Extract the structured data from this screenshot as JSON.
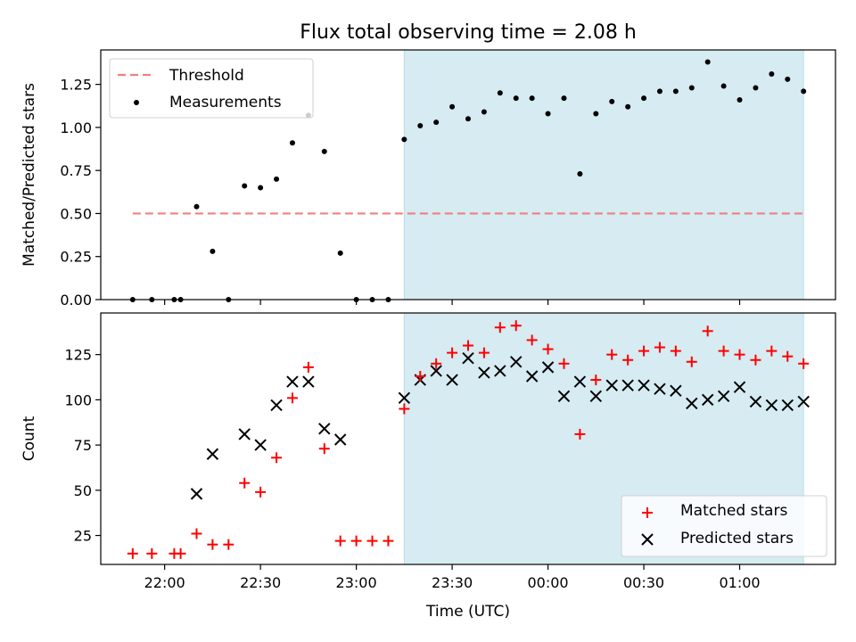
{
  "title": "Flux total observing time = 2.08 h",
  "xlabel": "Time (UTC)",
  "x_tick_labels": [
    "22:00",
    "22:30",
    "23:00",
    "23:30",
    "00:00",
    "00:30",
    "01:00"
  ],
  "colors": {
    "threshold": "#f08080",
    "measurement": "#000000",
    "matched": "#ff0000",
    "predicted": "#000000",
    "shade": "#add8e6"
  },
  "chart_data": [
    {
      "type": "scatter",
      "ylabel": "Matched/Predicted stars",
      "ylim": [
        0,
        1.45
      ],
      "y_ticks": [
        "0.00",
        "0.25",
        "0.50",
        "0.75",
        "1.00",
        "1.25"
      ],
      "y_tick_values": [
        0,
        0.25,
        0.5,
        0.75,
        1.0,
        1.25
      ],
      "xlim": [
        "21:40",
        "01:30"
      ],
      "shaded_region": {
        "x_start": "23:15",
        "x_end": "01:20"
      },
      "legend_position": "top-left",
      "threshold": {
        "name": "Threshold",
        "value": 0.5,
        "x_start": "21:50",
        "x_end": "01:20"
      },
      "series": [
        {
          "name": "Measurements",
          "x": [
            "21:50",
            "21:56",
            "22:03",
            "22:05",
            "22:10",
            "22:15",
            "22:20",
            "22:25",
            "22:30",
            "22:35",
            "22:40",
            "22:45",
            "22:50",
            "22:55",
            "23:00",
            "23:05",
            "23:10",
            "23:15",
            "23:20",
            "23:25",
            "23:30",
            "23:35",
            "23:40",
            "23:45",
            "23:50",
            "23:55",
            "24:00",
            "24:05",
            "24:10",
            "24:15",
            "24:20",
            "24:25",
            "24:30",
            "24:35",
            "24:40",
            "24:45",
            "24:50",
            "24:55",
            "25:00",
            "25:05",
            "25:10",
            "25:15",
            "25:20"
          ],
          "y": [
            0.0,
            0.0,
            0.0,
            0.0,
            0.54,
            0.28,
            0.0,
            0.66,
            0.65,
            0.7,
            0.91,
            1.07,
            0.86,
            0.27,
            0.0,
            0.0,
            0.0,
            0.93,
            1.01,
            1.03,
            1.12,
            1.05,
            1.09,
            1.2,
            1.17,
            1.17,
            1.08,
            1.17,
            0.73,
            1.08,
            1.15,
            1.12,
            1.17,
            1.21,
            1.21,
            1.23,
            1.38,
            1.24,
            1.16,
            1.23,
            1.31,
            1.28,
            1.21
          ]
        }
      ]
    },
    {
      "type": "scatter",
      "ylabel": "Count",
      "ylim": [
        9,
        148
      ],
      "y_ticks": [
        "25",
        "50",
        "75",
        "100",
        "125"
      ],
      "y_tick_values": [
        25,
        50,
        75,
        100,
        125
      ],
      "xlim": [
        "21:40",
        "01:30"
      ],
      "shaded_region": {
        "x_start": "23:15",
        "x_end": "01:20"
      },
      "legend_position": "bottom-right",
      "series": [
        {
          "name": "Matched stars",
          "marker": "plus",
          "x": [
            "21:50",
            "21:56",
            "22:03",
            "22:05",
            "22:10",
            "22:15",
            "22:20",
            "22:25",
            "22:30",
            "22:35",
            "22:40",
            "22:45",
            "22:50",
            "22:55",
            "23:00",
            "23:05",
            "23:10",
            "23:15",
            "23:20",
            "23:25",
            "23:30",
            "23:35",
            "23:40",
            "23:45",
            "23:50",
            "23:55",
            "24:00",
            "24:05",
            "24:10",
            "24:15",
            "24:20",
            "24:25",
            "24:30",
            "24:35",
            "24:40",
            "24:45",
            "24:50",
            "24:55",
            "25:00",
            "25:05",
            "25:10",
            "25:15",
            "25:20"
          ],
          "y": [
            15,
            15,
            15,
            15,
            26,
            20,
            20,
            54,
            49,
            68,
            101,
            118,
            73,
            22,
            22,
            22,
            22,
            95,
            113,
            120,
            126,
            130,
            126,
            140,
            141,
            133,
            128,
            120,
            81,
            111,
            125,
            122,
            127,
            129,
            127,
            121,
            138,
            127,
            125,
            122,
            127,
            124,
            120
          ]
        },
        {
          "name": "Predicted stars",
          "marker": "x",
          "x": [
            "22:10",
            "22:15",
            "22:25",
            "22:30",
            "22:35",
            "22:40",
            "22:45",
            "22:50",
            "22:55",
            "23:15",
            "23:20",
            "23:25",
            "23:30",
            "23:35",
            "23:40",
            "23:45",
            "23:50",
            "23:55",
            "24:00",
            "24:05",
            "24:10",
            "24:15",
            "24:20",
            "24:25",
            "24:30",
            "24:35",
            "24:40",
            "24:45",
            "24:50",
            "24:55",
            "25:00",
            "25:05",
            "25:10",
            "25:15",
            "25:20"
          ],
          "y": [
            48,
            70,
            81,
            75,
            97,
            110,
            110,
            84,
            78,
            101,
            111,
            116,
            111,
            123,
            115,
            116,
            121,
            113,
            118,
            102,
            110,
            102,
            108,
            108,
            108,
            106,
            105,
            98,
            100,
            102,
            107,
            99,
            97,
            97,
            99
          ]
        }
      ]
    }
  ]
}
